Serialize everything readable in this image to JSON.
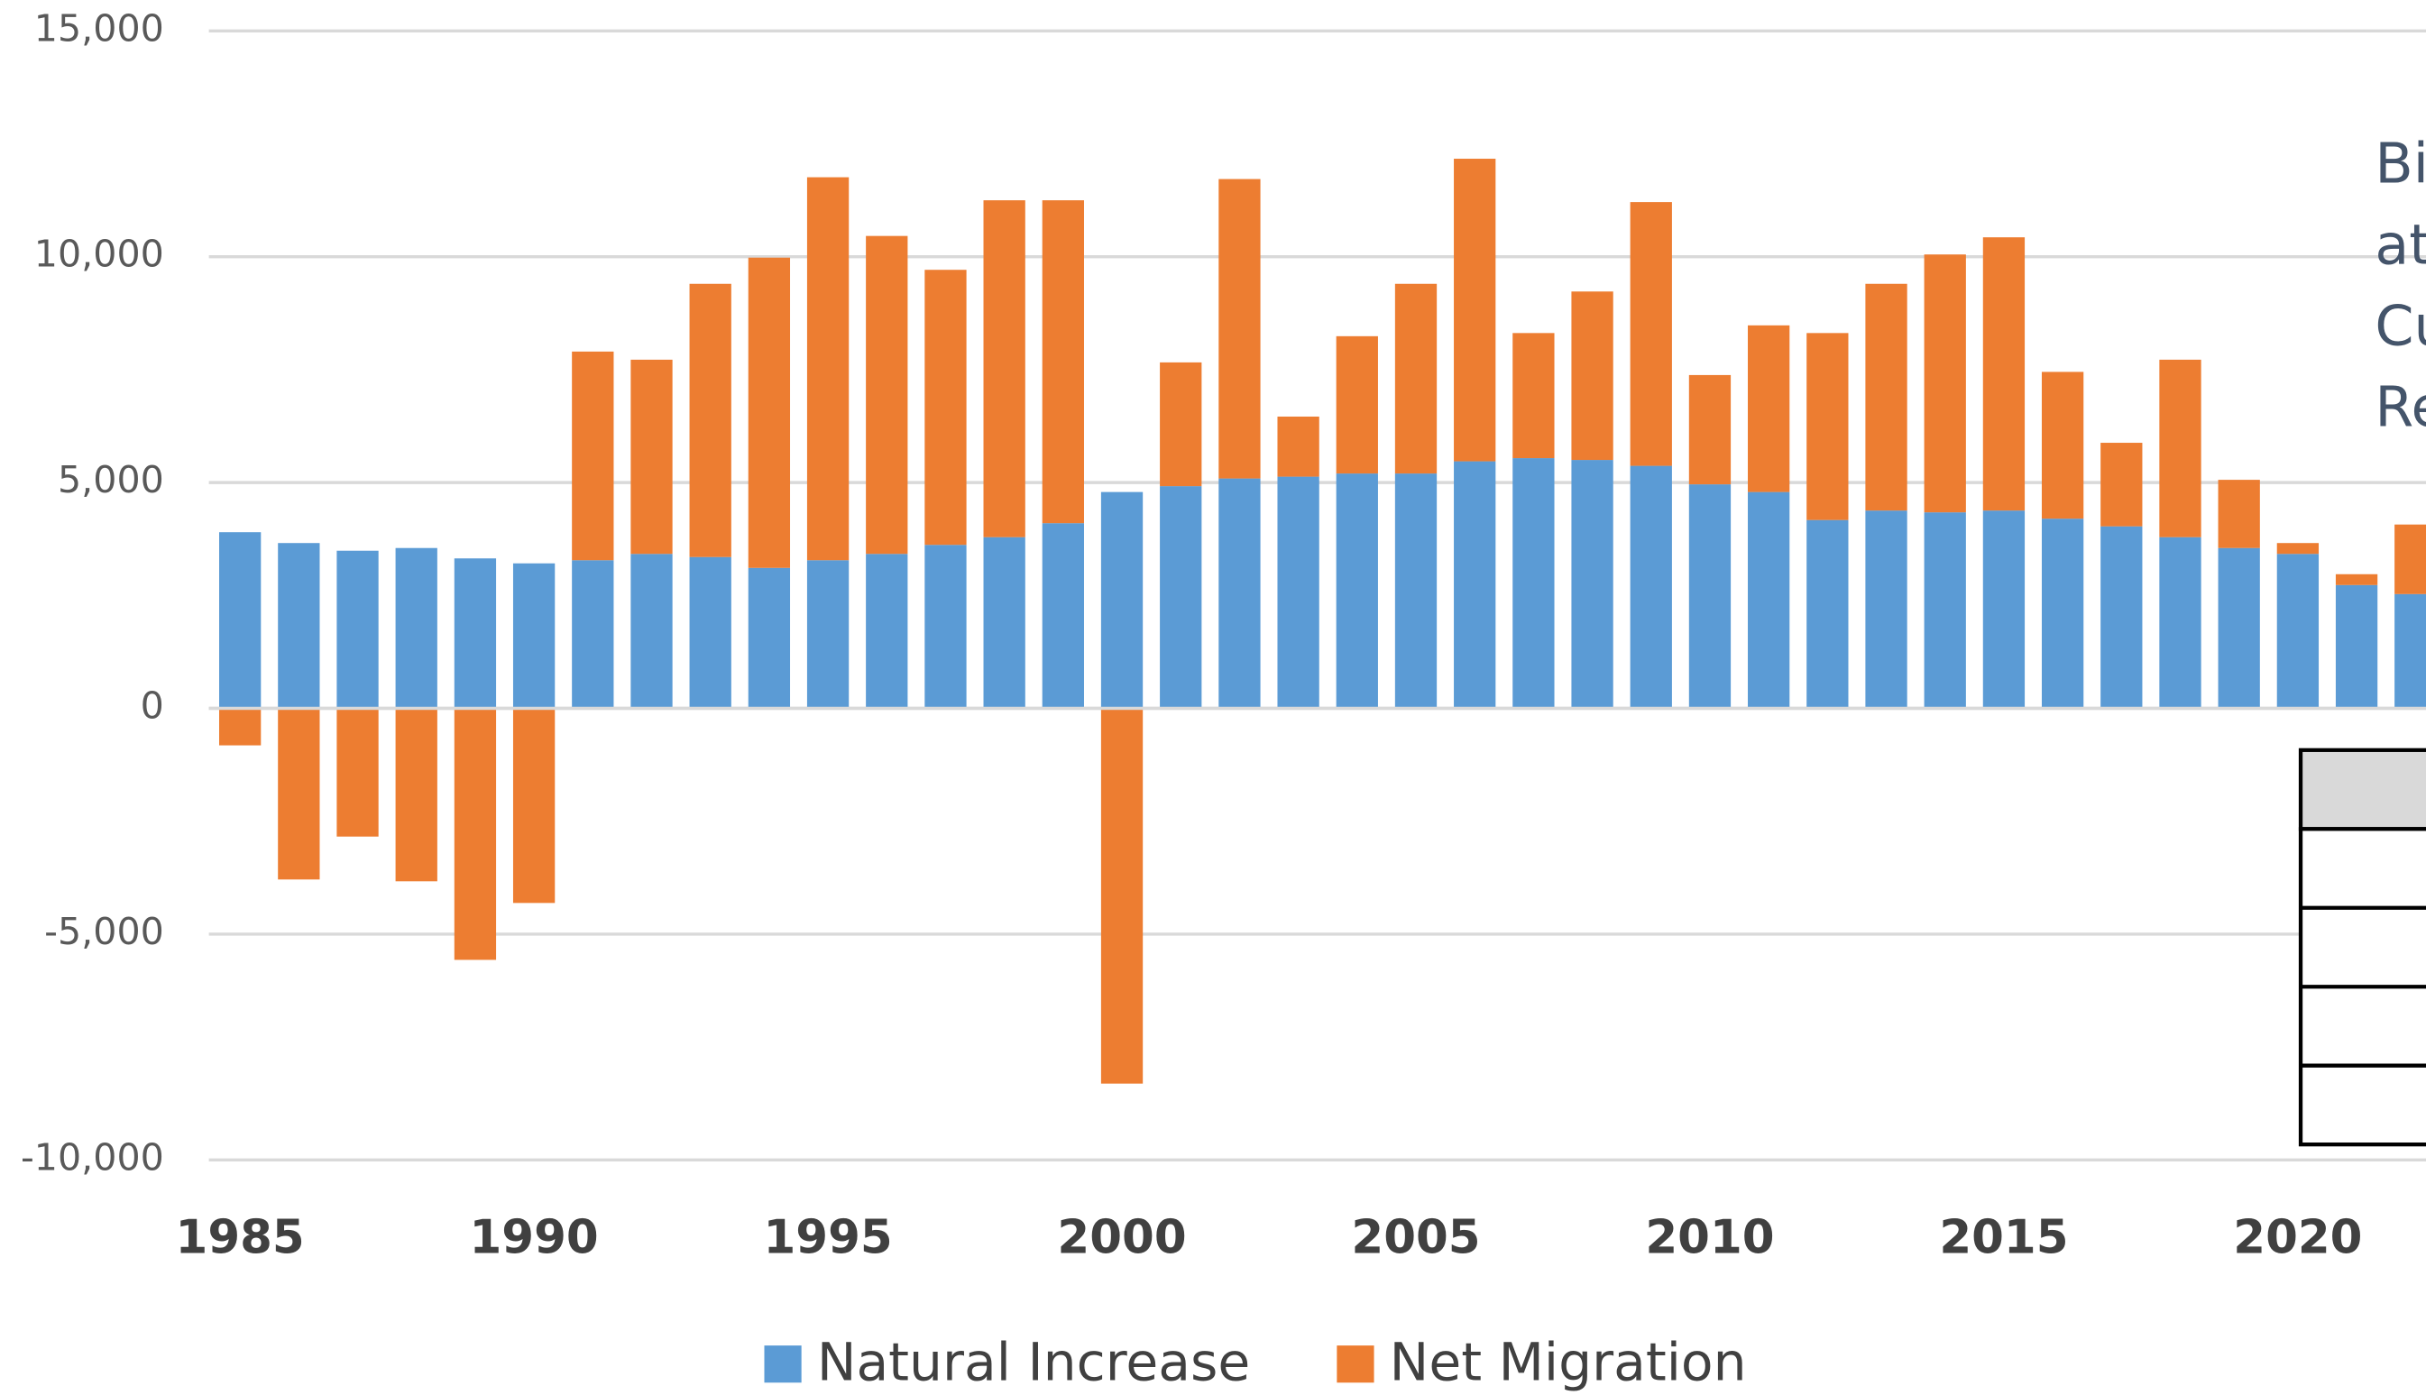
{
  "chart_data": {
    "type": "bar",
    "stacked": true,
    "x": [
      1985,
      1986,
      1987,
      1988,
      1989,
      1990,
      1991,
      1992,
      1993,
      1994,
      1995,
      1996,
      1997,
      1998,
      1999,
      2000,
      2001,
      2002,
      2003,
      2004,
      2005,
      2006,
      2007,
      2008,
      2009,
      2010,
      2011,
      2012,
      2013,
      2014,
      2015,
      2016,
      2017,
      2018,
      2019,
      2020,
      2021,
      2022
    ],
    "series": [
      {
        "name": "Natural Increase",
        "color": "#5b9bd5",
        "values": [
          3900,
          3660,
          3490,
          3550,
          3320,
          3210,
          3280,
          3420,
          3350,
          3110,
          3280,
          3420,
          3620,
          3790,
          4100,
          4790,
          4920,
          5090,
          5130,
          5200,
          5200,
          5470,
          5540,
          5500,
          5370,
          4960,
          4790,
          4170,
          4380,
          4340,
          4380,
          4200,
          4030,
          3790,
          3550,
          3420,
          2730,
          2530
        ]
      },
      {
        "name": "Net Migration",
        "color": "#ed7d31",
        "values": [
          -820,
          -3790,
          -2840,
          -3830,
          -5570,
          -4310,
          4620,
          4300,
          6050,
          6870,
          8480,
          7040,
          6090,
          7460,
          7150,
          -8310,
          2740,
          6630,
          1330,
          3040,
          4200,
          6700,
          2770,
          3730,
          5840,
          2420,
          3690,
          4140,
          5020,
          5710,
          6050,
          3250,
          1850,
          3930,
          1510,
          240,
          240,
          1540
        ]
      }
    ],
    "xlim": [
      1984.47,
      2022.18
    ],
    "xticks": [
      1985,
      1990,
      1995,
      2000,
      2005,
      2010,
      2015,
      2020
    ],
    "ylim": [
      -10000,
      15000
    ],
    "yticks": [
      {
        "value": -10000,
        "label": "-10,000"
      },
      {
        "value": -5000,
        "label": "-5,000"
      },
      0,
      {
        "value": 5000,
        "label": "5,000"
      },
      {
        "value": 10000,
        "label": "10,000"
      },
      {
        "value": 15000,
        "label": "15,000"
      }
    ],
    "grid": true,
    "legend": "bottom",
    "annotations": [
      "Bi",
      "at",
      "Cu",
      "Re"
    ]
  }
}
